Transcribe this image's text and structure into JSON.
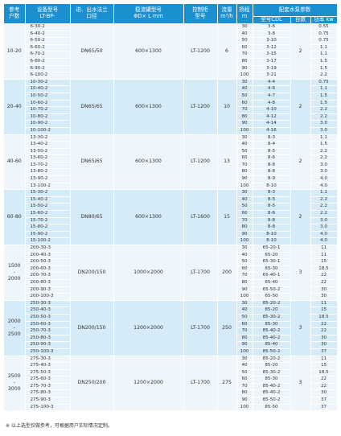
{
  "headers": {
    "ref": "参考\n户数",
    "model": "设备型号\nLT-BP-",
    "pipe": "进、出水法兰\n口径",
    "tank": "稳流罐型号\nΦD× L  mm",
    "cabinet": "控制柜\n型号",
    "flow": "流量\nm³/h",
    "head": "扬程\nm",
    "pump_group": "配套水泵参数",
    "pump_model": "型号CDL",
    "pump_count": "台数",
    "power": "功率 kw"
  },
  "groups": [
    {
      "ref": "10-20",
      "pipe": "DN65/50",
      "tank": "600×1300",
      "cabinet": "LT-1200",
      "flow": "6",
      "count": "2",
      "rows": [
        {
          "model": "6-30-2",
          "head": "30",
          "pump": "3-6",
          "power": "0.55"
        },
        {
          "model": "6-40-2",
          "head": "40",
          "pump": "3-8",
          "power": "0.75"
        },
        {
          "model": "6-50-2",
          "head": "50",
          "pump": "3-10",
          "power": "0.75"
        },
        {
          "model": "6-60-2",
          "head": "60",
          "pump": "3-12",
          "power": "1.1"
        },
        {
          "model": "6-70-2",
          "head": "70",
          "pump": "3-15",
          "power": "1.1"
        },
        {
          "model": "6-80-2",
          "head": "80",
          "pump": "3-17",
          "power": "1.5"
        },
        {
          "model": "6-90-2",
          "head": "90",
          "pump": "3-19",
          "power": "1.5"
        },
        {
          "model": "6-100-2",
          "head": "100",
          "pump": "3-21",
          "power": "2.2"
        }
      ]
    },
    {
      "ref": "20-40",
      "pipe": "DN65/65",
      "tank": "600×1300",
      "cabinet": "LT-1200",
      "flow": "10",
      "count": "2",
      "rows": [
        {
          "model": "10-30-2",
          "head": "30",
          "pump": "4-4",
          "power": "0.75"
        },
        {
          "model": "10-40-2",
          "head": "40",
          "pump": "4-6",
          "power": "1.1"
        },
        {
          "model": "10-50-2",
          "head": "50",
          "pump": "4-7",
          "power": "1.5"
        },
        {
          "model": "10-60-2",
          "head": "60",
          "pump": "4-8",
          "power": "1.5"
        },
        {
          "model": "10-70-2",
          "head": "70",
          "pump": "4-10",
          "power": "2.2"
        },
        {
          "model": "10-80-2",
          "head": "80",
          "pump": "4-12",
          "power": "2.2"
        },
        {
          "model": "10-90-2",
          "head": "90",
          "pump": "4-14",
          "power": "3.0"
        },
        {
          "model": "10-100-2",
          "head": "100",
          "pump": "4-16",
          "power": "3.0"
        }
      ]
    },
    {
      "ref": "40-60",
      "pipe": "DN65/65",
      "tank": "600×1300",
      "cabinet": "LT-1200",
      "flow": "13",
      "count": "2",
      "rows": [
        {
          "model": "13-30-2",
          "head": "30",
          "pump": "8-3",
          "power": "1.1"
        },
        {
          "model": "13-40-2",
          "head": "40",
          "pump": "8-4",
          "power": "1.5"
        },
        {
          "model": "13-50-2",
          "head": "50",
          "pump": "8-5",
          "power": "2.2"
        },
        {
          "model": "13-60-2",
          "head": "60",
          "pump": "8-6",
          "power": "2.2"
        },
        {
          "model": "13-70-2",
          "head": "70",
          "pump": "8-8",
          "power": "3.0"
        },
        {
          "model": "13-80-2",
          "head": "80",
          "pump": "8-8",
          "power": "3.0"
        },
        {
          "model": "13-90-2",
          "head": "90",
          "pump": "8-9",
          "power": "4.0"
        },
        {
          "model": "13-100-2",
          "head": "100",
          "pump": "8-10",
          "power": "4.0"
        }
      ]
    },
    {
      "ref": "60-80",
      "pipe": "DN80/65",
      "tank": "600×1300",
      "cabinet": "LT-1600",
      "flow": "15",
      "count": "2",
      "rows": [
        {
          "model": "15-30-2",
          "head": "30",
          "pump": "8-3",
          "power": "1.1"
        },
        {
          "model": "15-40-2",
          "head": "40",
          "pump": "8-5",
          "power": "2.2"
        },
        {
          "model": "15-50-2",
          "head": "50",
          "pump": "8-5",
          "power": "2.2"
        },
        {
          "model": "15-60-2",
          "head": "60",
          "pump": "8-6",
          "power": "2.2"
        },
        {
          "model": "15-70-2",
          "head": "70",
          "pump": "8-8",
          "power": "3.0"
        },
        {
          "model": "15-80-2",
          "head": "80",
          "pump": "8-8",
          "power": "3.0"
        },
        {
          "model": "15-90-2",
          "head": "90",
          "pump": "8-10",
          "power": "4.0"
        },
        {
          "model": "15-100-2",
          "head": "100",
          "pump": "8-10",
          "power": "4.0"
        }
      ]
    },
    {
      "ref": "1500\n-\n2000",
      "pipe": "DN200/150",
      "tank": "1000×2000",
      "cabinet": "LT-1700",
      "flow": "200",
      "count": "3",
      "rows": [
        {
          "model": "200-30-3",
          "head": "30",
          "pump": "65-20-1",
          "power": "11"
        },
        {
          "model": "200-40-3",
          "head": "40",
          "pump": "65-20",
          "power": "11"
        },
        {
          "model": "200-50-3",
          "head": "50",
          "pump": "65-30-1",
          "power": "15"
        },
        {
          "model": "200-60-3",
          "head": "60",
          "pump": "65-30",
          "power": "18.5"
        },
        {
          "model": "200-70-3",
          "head": "70",
          "pump": "65-40-1",
          "power": "22"
        },
        {
          "model": "200-80-3",
          "head": "80",
          "pump": "65-40",
          "power": "22"
        },
        {
          "model": "200-90-3",
          "head": "90",
          "pump": "65-50-2",
          "power": "30"
        },
        {
          "model": "200-100-3",
          "head": "100",
          "pump": "65-50",
          "power": "30"
        }
      ]
    },
    {
      "ref": "2000\n-\n2500",
      "pipe": "DN200/150",
      "tank": "1200×2000",
      "cabinet": "LT-1700",
      "flow": "250",
      "count": "3",
      "rows": [
        {
          "model": "250-30-3",
          "head": "30",
          "pump": "85-20-2",
          "power": "11"
        },
        {
          "model": "250-40-3",
          "head": "40",
          "pump": "85-20",
          "power": "15"
        },
        {
          "model": "250-50-3",
          "head": "50",
          "pump": "85-30-2",
          "power": "18.5"
        },
        {
          "model": "250-60-3",
          "head": "60",
          "pump": "85-30",
          "power": "22"
        },
        {
          "model": "250-70-3",
          "head": "70",
          "pump": "85-40-2",
          "power": "22"
        },
        {
          "model": "250-80-3",
          "head": "80",
          "pump": "85-40-2",
          "power": "30"
        },
        {
          "model": "250-90-3",
          "head": "90",
          "pump": "85-40",
          "power": "30"
        },
        {
          "model": "250-100-3",
          "head": "100",
          "pump": "85-50-2",
          "power": "37"
        }
      ]
    },
    {
      "ref": "2500\n-\n3000",
      "pipe": "DN250/200",
      "tank": "1200×2000",
      "cabinet": "LT-1700",
      "flow": "275",
      "count": "3",
      "rows": [
        {
          "model": "275-30-3",
          "head": "30",
          "pump": "85-20-2",
          "power": "11"
        },
        {
          "model": "275-40-3",
          "head": "40",
          "pump": "85-20",
          "power": "15"
        },
        {
          "model": "275-50-3",
          "head": "50",
          "pump": "85-30-2",
          "power": "18.5"
        },
        {
          "model": "275-60-3",
          "head": "60",
          "pump": "85-30",
          "power": "22"
        },
        {
          "model": "275-70-3",
          "head": "70",
          "pump": "85-40-2",
          "power": "22"
        },
        {
          "model": "275-80-3",
          "head": "80",
          "pump": "85-40-2",
          "power": "30"
        },
        {
          "model": "275-90-3",
          "head": "90",
          "pump": "85-50-2",
          "power": "37"
        },
        {
          "model": "275-100-3",
          "head": "100",
          "pump": "85-50",
          "power": "37"
        }
      ]
    }
  ],
  "footnote": "※ 以上选型仅做参考，可根据用户实际情况定制。"
}
